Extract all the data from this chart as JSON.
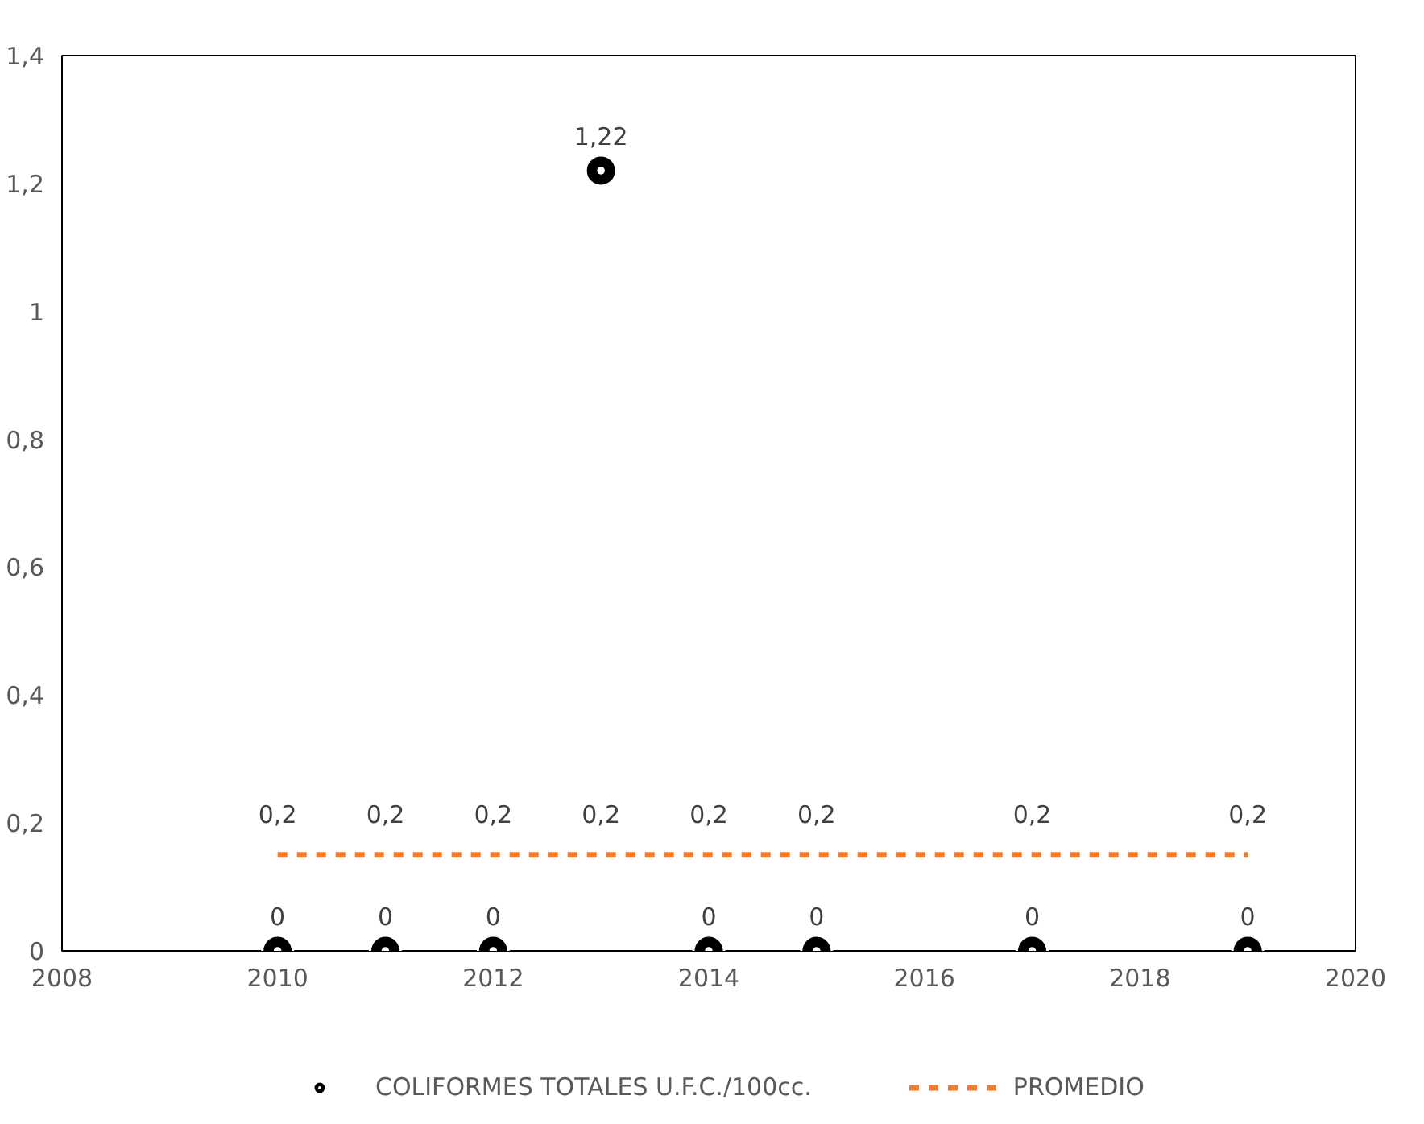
{
  "chart_data": {
    "type": "scatter",
    "xlim": [
      2008,
      2020
    ],
    "xticks": [
      2008,
      2010,
      2012,
      2014,
      2016,
      2018,
      2020
    ],
    "ylim": [
      0,
      1.4
    ],
    "yticks": [
      0,
      {
        "value": 0.2,
        "label": "0,2"
      },
      {
        "value": 0.4,
        "label": "0,4"
      },
      {
        "value": 0.6,
        "label": "0,6"
      },
      {
        "value": 0.8,
        "label": "0,8"
      },
      1,
      {
        "value": 1.2,
        "label": "1,2"
      },
      {
        "value": 1.4,
        "label": "1,4"
      }
    ],
    "grid": false,
    "legend": "bottom",
    "series": [
      {
        "name": "COLIFORMES TOTALES U.F.C./100cc.",
        "marker": "circle",
        "color": "#000000",
        "x": [
          2010,
          2011,
          2012,
          2013,
          2014,
          2015,
          2017,
          2019
        ],
        "values": [
          0,
          0,
          0,
          1.22,
          0,
          0,
          0,
          0
        ],
        "value_labels": [
          "0",
          "0",
          "0",
          "1,22",
          "0",
          "0",
          "0",
          "0"
        ]
      },
      {
        "name": "PROMEDIO",
        "type": "line",
        "line_style": "dashed",
        "color": "#ed7d31",
        "x": [
          2010,
          2011,
          2012,
          2013,
          2014,
          2015,
          2017,
          2019
        ],
        "values": [
          0.15,
          0.15,
          0.15,
          0.15,
          0.15,
          0.15,
          0.15,
          0.15
        ],
        "value_labels": [
          "0,2",
          "0,2",
          "0,2",
          "0,2",
          "0,2",
          "0,2",
          "0,2",
          "0,2"
        ]
      }
    ]
  }
}
